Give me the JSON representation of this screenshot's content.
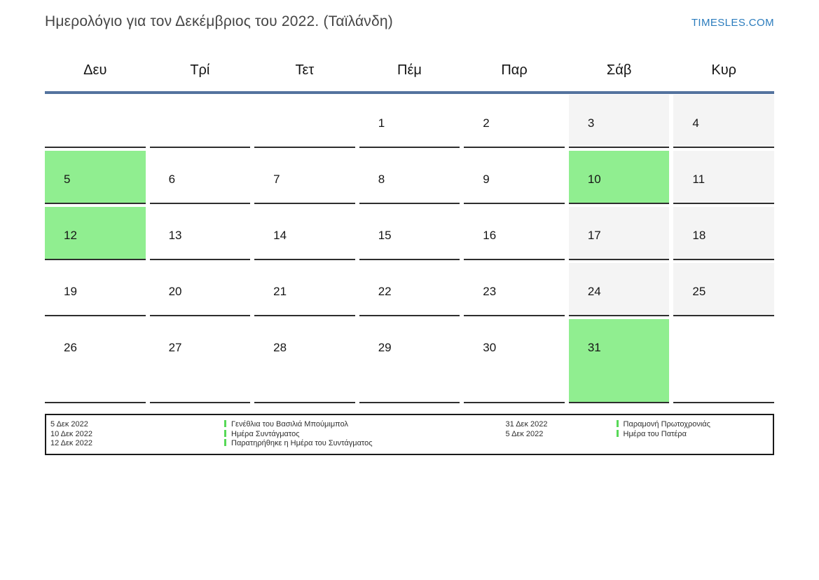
{
  "header": {
    "title": "Ημερολόγιο για τον Δεκέμβριος του 2022. (Ταϊλάνδη)",
    "site_link": "TIMESLES.COM"
  },
  "calendar": {
    "weekdays": [
      "Δευ",
      "Τρί",
      "Τετ",
      "Πέμ",
      "Παρ",
      "Σάβ",
      "Κυρ"
    ],
    "weeks": [
      [
        {
          "day": "",
          "type": "empty"
        },
        {
          "day": "",
          "type": "empty"
        },
        {
          "day": "",
          "type": "empty"
        },
        {
          "day": "1",
          "type": "normal"
        },
        {
          "day": "2",
          "type": "normal"
        },
        {
          "day": "3",
          "type": "weekend"
        },
        {
          "day": "4",
          "type": "weekend"
        }
      ],
      [
        {
          "day": "5",
          "type": "holiday"
        },
        {
          "day": "6",
          "type": "normal"
        },
        {
          "day": "7",
          "type": "normal"
        },
        {
          "day": "8",
          "type": "normal"
        },
        {
          "day": "9",
          "type": "normal"
        },
        {
          "day": "10",
          "type": "holiday"
        },
        {
          "day": "11",
          "type": "weekend"
        }
      ],
      [
        {
          "day": "12",
          "type": "holiday"
        },
        {
          "day": "13",
          "type": "normal"
        },
        {
          "day": "14",
          "type": "normal"
        },
        {
          "day": "15",
          "type": "normal"
        },
        {
          "day": "16",
          "type": "normal"
        },
        {
          "day": "17",
          "type": "weekend"
        },
        {
          "day": "18",
          "type": "weekend"
        }
      ],
      [
        {
          "day": "19",
          "type": "normal"
        },
        {
          "day": "20",
          "type": "normal"
        },
        {
          "day": "21",
          "type": "normal"
        },
        {
          "day": "22",
          "type": "normal"
        },
        {
          "day": "23",
          "type": "normal"
        },
        {
          "day": "24",
          "type": "weekend"
        },
        {
          "day": "25",
          "type": "weekend"
        }
      ],
      [
        {
          "day": "26",
          "type": "normal"
        },
        {
          "day": "27",
          "type": "normal"
        },
        {
          "day": "28",
          "type": "normal"
        },
        {
          "day": "29",
          "type": "normal"
        },
        {
          "day": "30",
          "type": "normal"
        },
        {
          "day": "31",
          "type": "holiday"
        },
        {
          "day": "",
          "type": "empty"
        }
      ]
    ]
  },
  "legend": {
    "left": [
      {
        "date": "5 Δεκ 2022",
        "name": "Γενέθλια του Βασιλιά Μπούμιμπολ"
      },
      {
        "date": "10 Δεκ 2022",
        "name": "Ημέρα Συντάγματος"
      },
      {
        "date": "12 Δεκ 2022",
        "name": "Παρατηρήθηκε η Ημέρα του Συντάγματος"
      }
    ],
    "right": [
      {
        "date": "31 Δεκ 2022",
        "name": "Παραμονή Πρωτοχρονιάς"
      },
      {
        "date": "5 Δεκ 2022",
        "name": "Ημέρα του Πατέρα"
      }
    ]
  },
  "colors": {
    "holiday_green": "#90ee90",
    "weekend_gray": "#f4f4f4",
    "header_line_blue": "#54739e",
    "link_blue": "#2b7cbd",
    "legend_marker_green": "#57d957",
    "cell_border": "#2e2e2e"
  }
}
